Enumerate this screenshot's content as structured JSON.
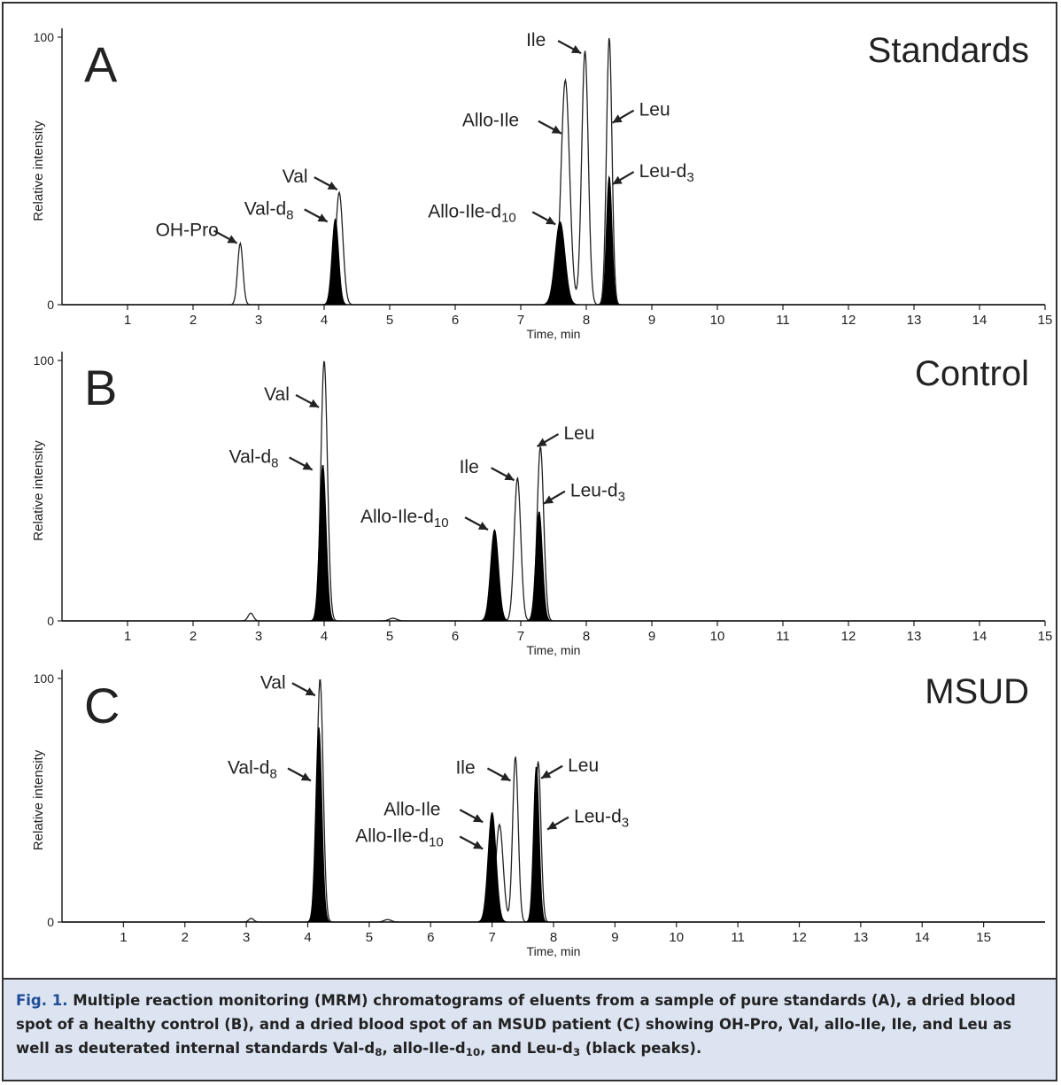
{
  "figure": {
    "caption_label": "Fig. 1.",
    "caption_parts": [
      {
        "t": " Multiple reaction monitoring (MRM) chromatograms of eluents from a sample of pure standards (A), a dried blood spot of a healthy control (B), and a dried blood spot of an MSUD patient (C) showing OH-Pro, Val, allo-Ile, Ile, and Leu as well as deuterated internal standards Val-d"
      },
      {
        "t": "8",
        "sub": true
      },
      {
        "t": ", allo-Ile-d"
      },
      {
        "t": "10",
        "sub": true
      },
      {
        "t": ", and Leu-d"
      },
      {
        "t": "3",
        "sub": true
      },
      {
        "t": " (black peaks)."
      }
    ]
  },
  "colors": {
    "trace": "#222222",
    "fill": "#000000",
    "axis": "#222222",
    "caption_bg": "#dce4f2",
    "caption_label": "#1f4d94"
  },
  "chart_data": [
    {
      "type": "line",
      "panel": "A",
      "title": "Standards",
      "xlabel": "Time, min",
      "ylabel": "Relative intensity",
      "xlim": [
        0,
        15
      ],
      "ylim": [
        0,
        100
      ],
      "xticks": [
        1,
        2,
        3,
        4,
        5,
        6,
        7,
        8,
        9,
        10,
        11,
        12,
        13,
        14,
        15
      ],
      "yticks": [
        0,
        100
      ],
      "series": [
        {
          "kind": "analyte",
          "peaks": [
            {
              "t": 2.72,
              "h": 23,
              "w": 0.04
            },
            {
              "t": 4.23,
              "h": 42,
              "w": 0.055
            },
            {
              "t": 7.68,
              "h": 84,
              "w": 0.065
            },
            {
              "t": 7.98,
              "h": 95,
              "w": 0.05
            },
            {
              "t": 8.35,
              "h": 100,
              "w": 0.042
            }
          ]
        },
        {
          "kind": "internal-standard",
          "peaks": [
            {
              "t": 4.17,
              "h": 32,
              "w": 0.05
            },
            {
              "t": 7.6,
              "h": 31,
              "w": 0.075
            },
            {
              "t": 8.35,
              "h": 48,
              "w": 0.042
            }
          ]
        }
      ],
      "annotations": [
        {
          "label": "OH-Pro",
          "sub": "",
          "x": 2.67,
          "y": 23
        },
        {
          "label": "Val",
          "sub": "",
          "x": 4.2,
          "y": 43
        },
        {
          "label": "Val-d",
          "sub": "8",
          "x": 4.05,
          "y": 31
        },
        {
          "label": "Ile",
          "sub": "",
          "x": 7.92,
          "y": 94
        },
        {
          "label": "Allo-Ile",
          "sub": "",
          "x": 7.62,
          "y": 64
        },
        {
          "label": "Allo-Ile-d",
          "sub": "10",
          "x": 7.53,
          "y": 30
        },
        {
          "label": "Leu",
          "sub": "",
          "x": 8.4,
          "y": 68
        },
        {
          "label": "Leu-d",
          "sub": "3",
          "x": 8.4,
          "y": 45
        }
      ]
    },
    {
      "type": "line",
      "panel": "B",
      "title": "Control",
      "xlabel": "Time, min",
      "ylabel": "Relative intensity",
      "xlim": [
        0,
        15
      ],
      "ylim": [
        0,
        100
      ],
      "xticks": [
        1,
        2,
        3,
        4,
        5,
        6,
        7,
        8,
        9,
        10,
        11,
        12,
        13,
        14,
        15
      ],
      "yticks": [
        0,
        100
      ],
      "series": [
        {
          "kind": "analyte",
          "peaks": [
            {
              "t": 2.88,
              "h": 3,
              "w": 0.04
            },
            {
              "t": 4.0,
              "h": 100,
              "w": 0.05
            },
            {
              "t": 5.05,
              "h": 1,
              "w": 0.06
            },
            {
              "t": 6.95,
              "h": 55,
              "w": 0.05
            },
            {
              "t": 7.3,
              "h": 67,
              "w": 0.05
            }
          ]
        },
        {
          "kind": "internal-standard",
          "peaks": [
            {
              "t": 3.98,
              "h": 60,
              "w": 0.05
            },
            {
              "t": 6.6,
              "h": 35,
              "w": 0.06
            },
            {
              "t": 7.28,
              "h": 42,
              "w": 0.05
            }
          ]
        }
      ],
      "annotations": [
        {
          "label": "Val",
          "sub": "",
          "x": 3.92,
          "y": 82
        },
        {
          "label": "Val-d",
          "sub": "8",
          "x": 3.82,
          "y": 58
        },
        {
          "label": "Leu",
          "sub": "",
          "x": 7.25,
          "y": 67
        },
        {
          "label": "Ile",
          "sub": "",
          "x": 6.9,
          "y": 54
        },
        {
          "label": "Allo-Ile-d",
          "sub": "10",
          "x": 6.5,
          "y": 35
        },
        {
          "label": "Leu-d",
          "sub": "3",
          "x": 7.35,
          "y": 45
        }
      ]
    },
    {
      "type": "line",
      "panel": "C",
      "title": "MSUD",
      "xlabel": "Time, min",
      "ylabel": "Relative intensity",
      "xlim": [
        0,
        16
      ],
      "ylim": [
        0,
        100
      ],
      "xticks": [
        1,
        2,
        3,
        4,
        5,
        6,
        7,
        8,
        9,
        10,
        11,
        12,
        13,
        14,
        15
      ],
      "yticks": [
        0,
        100
      ],
      "series": [
        {
          "kind": "analyte",
          "peaks": [
            {
              "t": 3.08,
              "h": 1.5,
              "w": 0.04
            },
            {
              "t": 4.2,
              "h": 100,
              "w": 0.05
            },
            {
              "t": 5.3,
              "h": 1,
              "w": 0.06
            },
            {
              "t": 7.12,
              "h": 40,
              "w": 0.06
            },
            {
              "t": 7.38,
              "h": 68,
              "w": 0.045
            },
            {
              "t": 7.75,
              "h": 66,
              "w": 0.045
            }
          ]
        },
        {
          "kind": "internal-standard",
          "peaks": [
            {
              "t": 4.18,
              "h": 80,
              "w": 0.05
            },
            {
              "t": 7.0,
              "h": 45,
              "w": 0.065
            },
            {
              "t": 7.72,
              "h": 64,
              "w": 0.045
            }
          ]
        }
      ],
      "annotations": [
        {
          "label": "Val",
          "sub": "",
          "x": 4.12,
          "y": 93
        },
        {
          "label": "Val-d",
          "sub": "8",
          "x": 4.05,
          "y": 58
        },
        {
          "label": "Ile",
          "sub": "",
          "x": 7.3,
          "y": 58
        },
        {
          "label": "Allo-Ile",
          "sub": "",
          "x": 6.85,
          "y": 41
        },
        {
          "label": "Allo-Ile-d",
          "sub": "10",
          "x": 6.85,
          "y": 30
        },
        {
          "label": "Leu",
          "sub": "",
          "x": 7.8,
          "y": 59
        },
        {
          "label": "Leu-d",
          "sub": "3",
          "x": 7.9,
          "y": 38
        }
      ]
    }
  ]
}
